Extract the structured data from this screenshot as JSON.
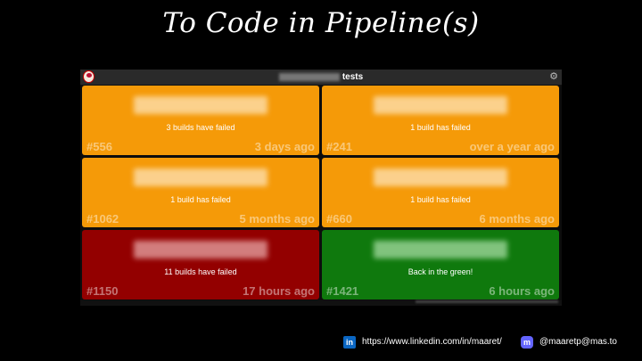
{
  "slide": {
    "title": "To Code in Pipeline(s)"
  },
  "dashboard": {
    "header_title": "tests",
    "tiles": [
      {
        "status": "3 builds have failed",
        "build": "#556",
        "age": "3 days ago",
        "state": "failing"
      },
      {
        "status": "1 build has failed",
        "build": "#241",
        "age": "over a year ago",
        "state": "failing"
      },
      {
        "status": "1 build has failed",
        "build": "#1062",
        "age": "5 months ago",
        "state": "failing"
      },
      {
        "status": "1 build has failed",
        "build": "#660",
        "age": "6 months ago",
        "state": "failing"
      },
      {
        "status": "11 builds have failed",
        "build": "#1150",
        "age": "17 hours ago",
        "state": "broken"
      },
      {
        "status": "Back in the green!",
        "build": "#1421",
        "age": "6 hours ago",
        "state": "ok"
      }
    ],
    "colors": {
      "failing": "#f59a08",
      "broken": "#930000",
      "ok": "#0f790d"
    }
  },
  "contacts": {
    "linkedin": "https://www.linkedin.com/in/maaret/",
    "mastodon": "@maaretp@mas.to",
    "linkedin_icon_glyph": "in",
    "mastodon_icon_glyph": "m"
  },
  "icons": [
    "jenkins-logo-icon",
    "gear-icon",
    "linkedin-icon",
    "mastodon-icon"
  ]
}
